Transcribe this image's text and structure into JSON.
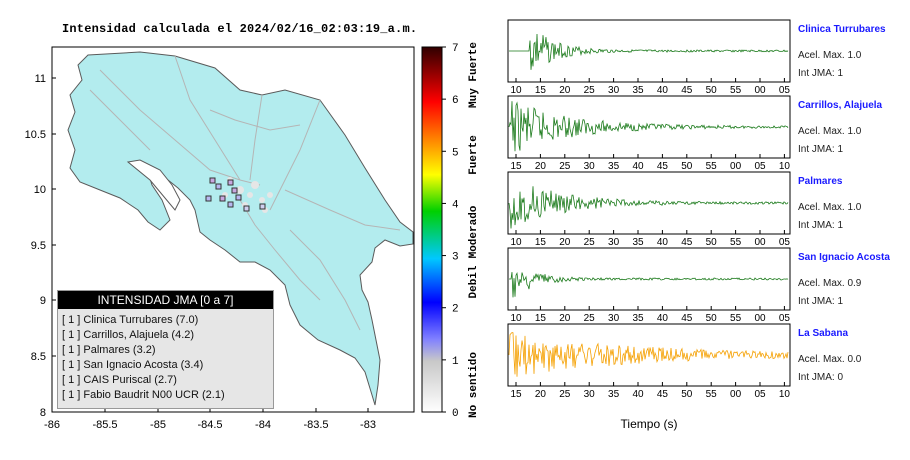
{
  "map": {
    "title": "Intensidad calculada el 2024/02/16_02:03:19_a.m.",
    "lat_ticks": [
      "11",
      "10.5",
      "10",
      "9.5",
      "9",
      "8.5",
      "8"
    ],
    "lon_ticks": [
      "-86",
      "-85.5",
      "-85",
      "-84.5",
      "-84",
      "-83.5",
      "-83"
    ],
    "lat_range": [
      8,
      11.25
    ],
    "lon_range": [
      -86,
      -82.8
    ]
  },
  "colorbar": {
    "ticks": [
      "0",
      "1",
      "2",
      "3",
      "4",
      "5",
      "6",
      "7"
    ],
    "labels": [
      "No sentido",
      "Debil",
      "Moderado",
      "Fuerte",
      "Muy Fuerte"
    ]
  },
  "legend": {
    "title": "INTENSIDAD JMA [0 a 7]",
    "items": [
      "[ 1 ]  Clinica Turrubares (7.0)",
      "[ 1 ]  Carrillos, Alajuela (4.2)",
      "[ 1 ]  Palmares (3.2)",
      "[ 1 ]  San Ignacio Acosta (3.4)",
      "[ 1 ]  CAIS Puriscal (2.7)",
      "[ 1 ]  Fabio Baudrit N00 UCR (2.1)"
    ]
  },
  "traces": [
    {
      "station": "Clinica Turrubares",
      "accel": "Acel. Max. 1.0",
      "jma": "Int JMA: 1",
      "ticks": [
        "10",
        "15",
        "20",
        "25",
        "30",
        "35",
        "40",
        "45",
        "50",
        "55",
        "00",
        "05"
      ],
      "color": "#1a7a1a"
    },
    {
      "station": "Carrillos, Alajuela",
      "accel": "Acel. Max. 1.0",
      "jma": "Int JMA: 1",
      "ticks": [
        "15",
        "20",
        "25",
        "30",
        "35",
        "40",
        "45",
        "50",
        "55",
        "00",
        "05",
        "10"
      ],
      "color": "#1a7a1a"
    },
    {
      "station": "Palmares",
      "accel": "Acel. Max. 1.0",
      "jma": "Int JMA: 1",
      "ticks": [
        "10",
        "15",
        "20",
        "25",
        "30",
        "35",
        "40",
        "45",
        "50",
        "55",
        "00",
        "05"
      ],
      "color": "#1a7a1a"
    },
    {
      "station": "San Ignacio Acosta",
      "accel": "Acel. Max. 0.9",
      "jma": "Int JMA: 1",
      "ticks": [
        "10",
        "15",
        "20",
        "25",
        "30",
        "35",
        "40",
        "45",
        "50",
        "55",
        "00",
        "05"
      ],
      "color": "#1a7a1a"
    },
    {
      "station": "La Sabana",
      "accel": "Acel. Max. 0.0",
      "jma": "Int JMA: 0",
      "ticks": [
        "15",
        "20",
        "25",
        "30",
        "35",
        "40",
        "45",
        "50",
        "55",
        "00",
        "05",
        "10"
      ],
      "color": "#f5a000"
    }
  ],
  "xaxis_label": "Tiempo (s)"
}
